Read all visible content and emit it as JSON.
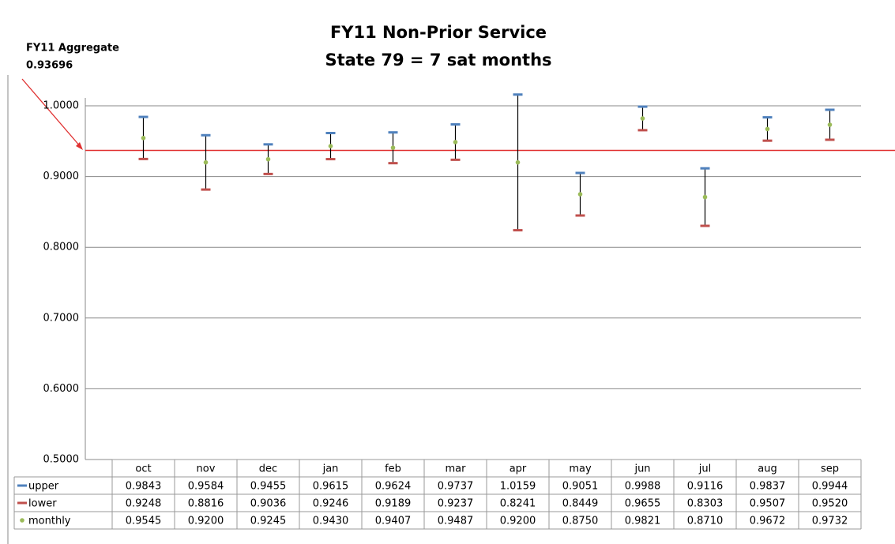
{
  "chart_data": {
    "type": "error_range",
    "title": "FY11 Non-Prior Service",
    "subtitle": "State 79 = 7 sat months",
    "annotation": {
      "label": "FY11 Aggregate",
      "value": 0.93696,
      "color": "#e03030"
    },
    "categories": [
      "oct",
      "nov",
      "dec",
      "jan",
      "feb",
      "mar",
      "apr",
      "may",
      "jun",
      "jul",
      "aug",
      "sep"
    ],
    "series": [
      {
        "name": "upper",
        "color": "#4f81bd",
        "values": [
          0.9843,
          0.9584,
          0.9455,
          0.9615,
          0.9624,
          0.9737,
          1.0159,
          0.9051,
          0.9988,
          0.9116,
          0.9837,
          0.9944
        ],
        "value_labels": [
          "0.9843",
          "0.9584",
          "0.9455",
          "0.9615",
          "0.9624",
          "0.9737",
          "1.0159",
          "0.9051",
          "0.9988",
          "0.9116",
          "0.9837",
          "0.9944"
        ]
      },
      {
        "name": "lower",
        "color": "#c0504d",
        "values": [
          0.9248,
          0.8816,
          0.9036,
          0.9246,
          0.9189,
          0.9237,
          0.8241,
          0.8449,
          0.9655,
          0.8303,
          0.9507,
          0.952
        ],
        "value_labels": [
          "0.9248",
          "0.8816",
          "0.9036",
          "0.9246",
          "0.9189",
          "0.9237",
          "0.8241",
          "0.8449",
          "0.9655",
          "0.8303",
          "0.9507",
          "0.9520"
        ]
      },
      {
        "name": "monthly",
        "color": "#9bbb59",
        "values": [
          0.9545,
          0.92,
          0.9245,
          0.943,
          0.9407,
          0.9487,
          0.92,
          0.875,
          0.9821,
          0.871,
          0.9672,
          0.9732
        ],
        "value_labels": [
          "0.9545",
          "0.9200",
          "0.9245",
          "0.9430",
          "0.9407",
          "0.9487",
          "0.9200",
          "0.8750",
          "0.9821",
          "0.8710",
          "0.9672",
          "0.9732"
        ]
      }
    ],
    "ylim": [
      0.5,
      1.0
    ],
    "yticks": [
      {
        "value": 0.5,
        "label": "0.5000"
      },
      {
        "value": 0.6,
        "label": "0.6000"
      },
      {
        "value": 0.7,
        "label": "0.7000"
      },
      {
        "value": 0.8,
        "label": "0.8000"
      },
      {
        "value": 0.9,
        "label": "0.9000"
      },
      {
        "value": 1.0,
        "label": "1.0000"
      }
    ],
    "grid": true
  }
}
